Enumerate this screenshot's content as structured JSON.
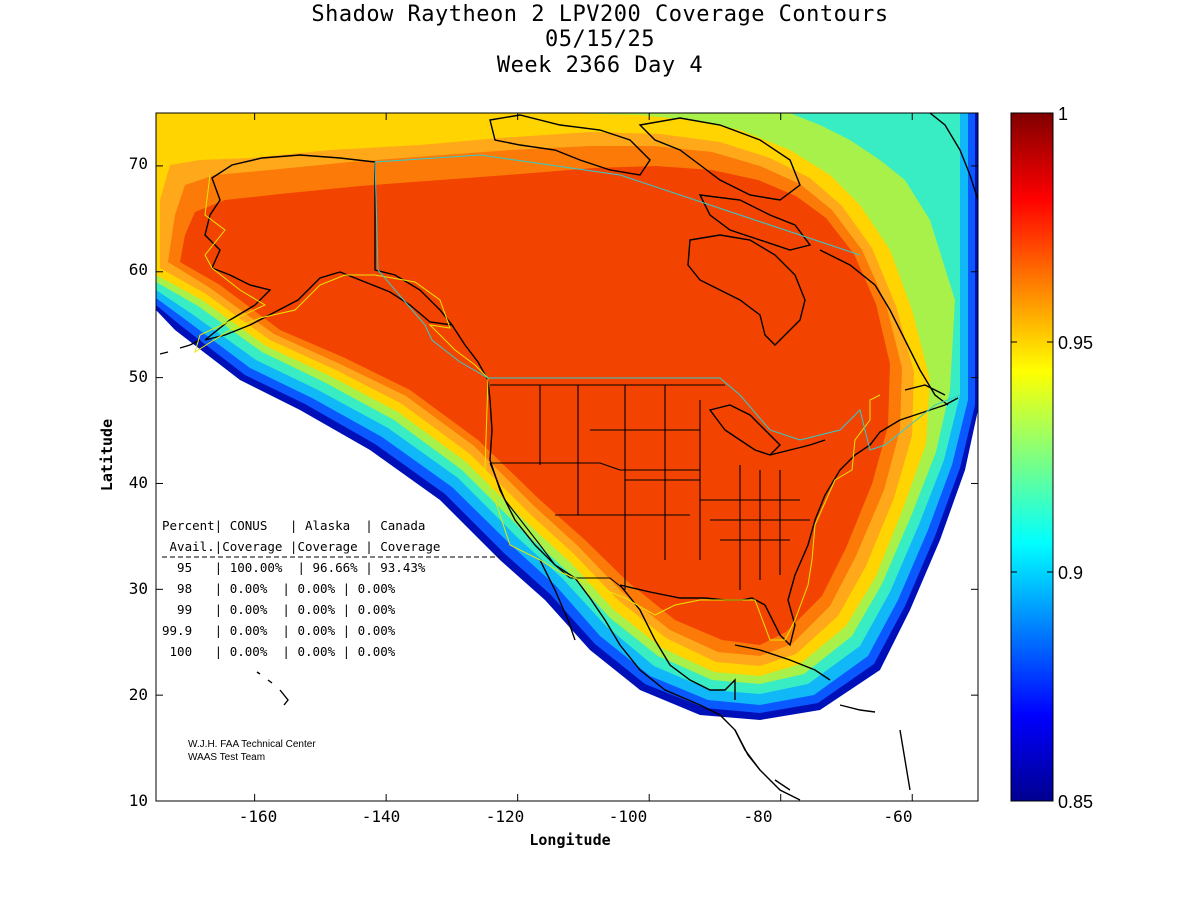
{
  "title": {
    "line1": "Shadow Raytheon 2 LPV200 Coverage Contours",
    "line2": "05/15/25",
    "line3": "Week 2366 Day 4"
  },
  "axes": {
    "xlabel": "Longitude",
    "ylabel": "Latitude",
    "xlim": [
      -175,
      -50
    ],
    "ylim": [
      10,
      75
    ],
    "xticks": [
      -160,
      -140,
      -120,
      -100,
      -80,
      -60
    ],
    "yticks": [
      10,
      20,
      30,
      40,
      50,
      60,
      70
    ],
    "xtick_labels": [
      "-160",
      "-140",
      "-120",
      "-100",
      "-80",
      "-60"
    ],
    "ytick_labels": [
      "10",
      "20",
      "30",
      "40",
      "50",
      "60",
      "70"
    ]
  },
  "colorbar": {
    "range": [
      0.85,
      1
    ],
    "ticks": [
      0.85,
      0.9,
      0.95,
      1
    ],
    "tick_labels": [
      "0.85",
      "0.9",
      "0.95",
      "1"
    ],
    "colormap": "jet"
  },
  "table": {
    "header1": "Percent| CONUS   | Alaska  | Canada",
    "header2": " Avail.|Coverage |Coverage | Coverage",
    "rows": [
      "  95   | 100.00%  | 96.66% | 93.43%",
      "  98   | 0.00%  | 0.00% | 0.00%",
      "  99   | 0.00%  | 0.00% | 0.00%",
      "99.9   | 0.00%  | 0.00% | 0.00%",
      " 100   | 0.00%  | 0.00% | 0.00%"
    ]
  },
  "credit": {
    "line1": "W.J.H. FAA Technical Center",
    "line2": "WAAS Test Team"
  },
  "coverage": {
    "conus": "100.00%",
    "alaska": "96.66%",
    "canada": "93.43%"
  },
  "colors": {
    "core": "#f24400",
    "band1": "#fb7a08",
    "band2": "#ffa81a",
    "band3": "#ffd400",
    "band4": "#a8f04a",
    "band5": "#38ecc4",
    "band6": "#10b8f8",
    "band7": "#0a58ff",
    "band8": "#0010b8",
    "coast": "#000000",
    "boundary_yellow": "#e6e600",
    "boundary_cyan": "#33cccc"
  }
}
